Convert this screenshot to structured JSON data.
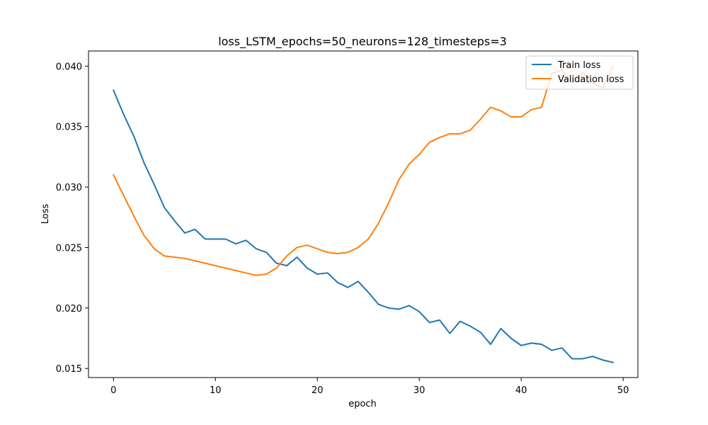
{
  "chart_data": {
    "type": "line",
    "title": "loss_LSTM_epochs=50_neurons=128_timesteps=3",
    "xlabel": "epoch",
    "ylabel": "Loss",
    "xlim": [
      -2.45,
      51.45
    ],
    "ylim": [
      0.01425,
      0.04125
    ],
    "xticks": [
      0,
      10,
      20,
      30,
      40,
      50
    ],
    "yticks": [
      0.015,
      0.02,
      0.025,
      0.03,
      0.035,
      0.04
    ],
    "ytick_labels": [
      "0.015",
      "0.020",
      "0.025",
      "0.030",
      "0.035",
      "0.040"
    ],
    "grid": false,
    "legend_position": "top-right",
    "x": [
      0,
      1,
      2,
      3,
      4,
      5,
      6,
      7,
      8,
      9,
      10,
      11,
      12,
      13,
      14,
      15,
      16,
      17,
      18,
      19,
      20,
      21,
      22,
      23,
      24,
      25,
      26,
      27,
      28,
      29,
      30,
      31,
      32,
      33,
      34,
      35,
      36,
      37,
      38,
      39,
      40,
      41,
      42,
      43,
      44,
      45,
      46,
      47,
      48,
      49
    ],
    "series": [
      {
        "name": "Train loss",
        "color": "#1f77b4",
        "values": [
          0.038,
          0.036,
          0.0342,
          0.032,
          0.0302,
          0.0283,
          0.0272,
          0.0262,
          0.0265,
          0.0257,
          0.0257,
          0.0257,
          0.0253,
          0.0256,
          0.0249,
          0.0246,
          0.0237,
          0.0235,
          0.0242,
          0.0233,
          0.0228,
          0.0229,
          0.0221,
          0.0217,
          0.0222,
          0.0213,
          0.0203,
          0.02,
          0.0199,
          0.0202,
          0.0197,
          0.0188,
          0.019,
          0.0179,
          0.0189,
          0.0185,
          0.018,
          0.017,
          0.0183,
          0.0175,
          0.0169,
          0.0171,
          0.017,
          0.0165,
          0.0167,
          0.0158,
          0.0158,
          0.016,
          0.0157,
          0.0155
        ]
      },
      {
        "name": "Validation loss",
        "color": "#ff7f0e",
        "values": [
          0.031,
          0.0293,
          0.0276,
          0.026,
          0.0249,
          0.0243,
          0.0242,
          0.0241,
          0.0239,
          0.0237,
          0.0235,
          0.0233,
          0.0231,
          0.0229,
          0.0227,
          0.0228,
          0.0233,
          0.0243,
          0.025,
          0.0252,
          0.0249,
          0.0246,
          0.0245,
          0.0246,
          0.025,
          0.0257,
          0.027,
          0.0287,
          0.0306,
          0.0319,
          0.0327,
          0.0337,
          0.0341,
          0.0344,
          0.0344,
          0.0347,
          0.0356,
          0.0366,
          0.0363,
          0.0358,
          0.0358,
          0.0364,
          0.0366,
          0.0394,
          0.0397,
          0.0386,
          0.0395,
          0.0386,
          0.0382,
          0.04
        ]
      }
    ]
  }
}
